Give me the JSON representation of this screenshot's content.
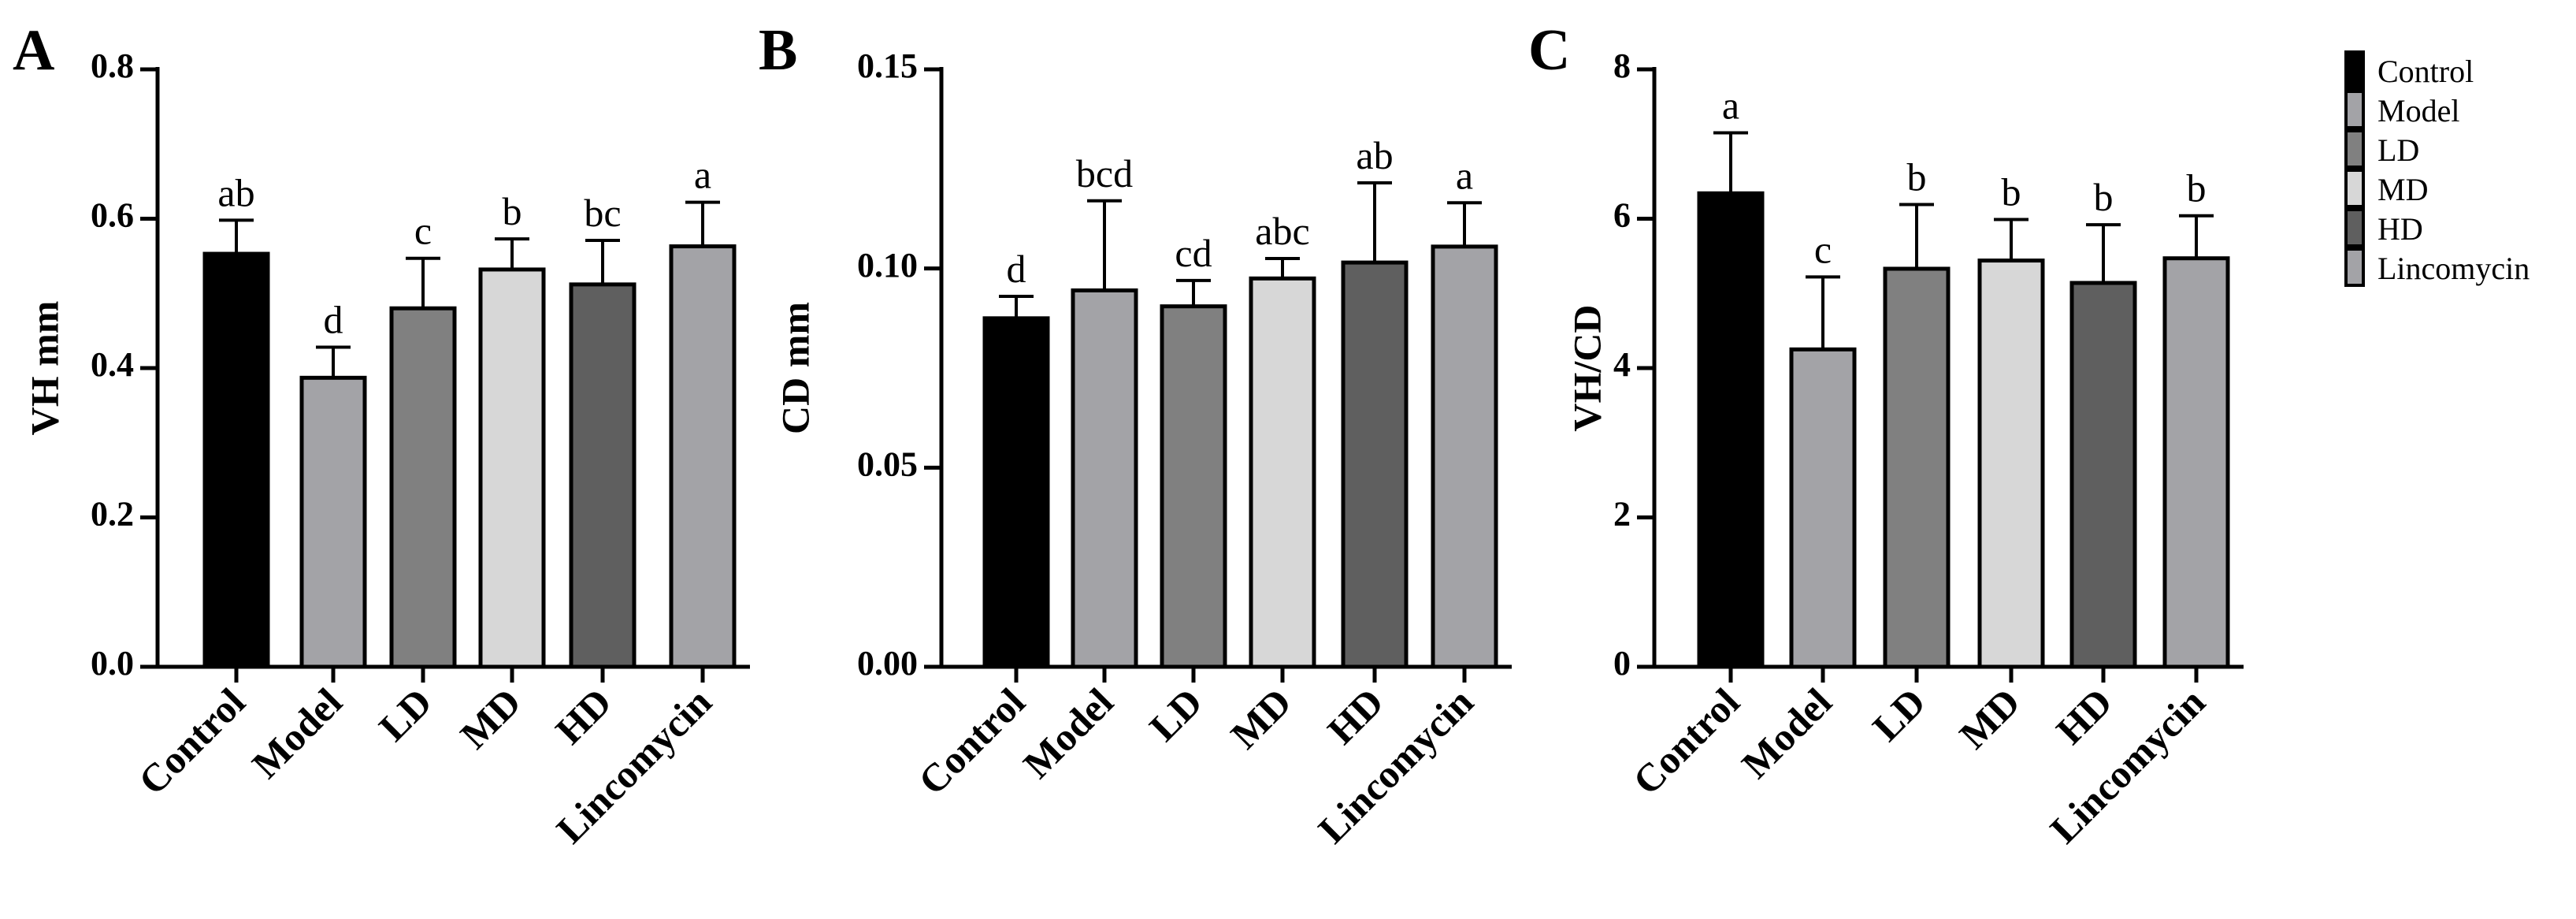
{
  "chart_data": [
    {
      "type": "bar",
      "panel": "A",
      "ylabel": "VH mm",
      "ylim": [
        0,
        0.8
      ],
      "yticks": [
        "0.0",
        "0.2",
        "0.4",
        "0.6",
        "0.8"
      ],
      "categories": [
        "Control",
        "Model",
        "LD",
        "MD",
        "HD",
        "Lincomycin"
      ],
      "values": [
        0.553,
        0.387,
        0.48,
        0.532,
        0.512,
        0.563
      ],
      "error_upper": [
        0.598,
        0.428,
        0.547,
        0.573,
        0.571,
        0.622
      ],
      "significance": [
        "ab",
        "d",
        "c",
        "b",
        "bc",
        "a"
      ]
    },
    {
      "type": "bar",
      "panel": "B",
      "ylabel": "CD mm",
      "ylim": [
        0,
        0.15
      ],
      "yticks": [
        "0.00",
        "0.05",
        "0.10",
        "0.15"
      ],
      "categories": [
        "Control",
        "Model",
        "LD",
        "MD",
        "HD",
        "Lincomycin"
      ],
      "values": [
        0.0875,
        0.0945,
        0.0905,
        0.0975,
        0.1015,
        0.1055
      ],
      "error_upper": [
        0.093,
        0.117,
        0.097,
        0.1025,
        0.1215,
        0.1165
      ],
      "significance": [
        "d",
        "bcd",
        "cd",
        "abc",
        "ab",
        "a"
      ]
    },
    {
      "type": "bar",
      "panel": "C",
      "ylabel": "VH/CD",
      "ylim": [
        0,
        8
      ],
      "yticks": [
        "0",
        "2",
        "4",
        "6",
        "8"
      ],
      "categories": [
        "Control",
        "Model",
        "LD",
        "MD",
        "HD",
        "Lincomycin"
      ],
      "values": [
        6.34,
        4.25,
        5.33,
        5.44,
        5.14,
        5.47
      ],
      "error_upper": [
        7.15,
        5.22,
        6.19,
        5.99,
        5.92,
        6.04
      ],
      "significance": [
        "a",
        "c",
        "b",
        "b",
        "b",
        "b"
      ]
    }
  ],
  "legend": [
    "Control",
    "Model",
    "LD",
    "MD",
    "HD",
    "Lincomycin"
  ],
  "colors": [
    "#000000",
    "#a3a3a7",
    "#808080",
    "#d7d7d7",
    "#5f5f5f",
    "#a3a3a7"
  ]
}
